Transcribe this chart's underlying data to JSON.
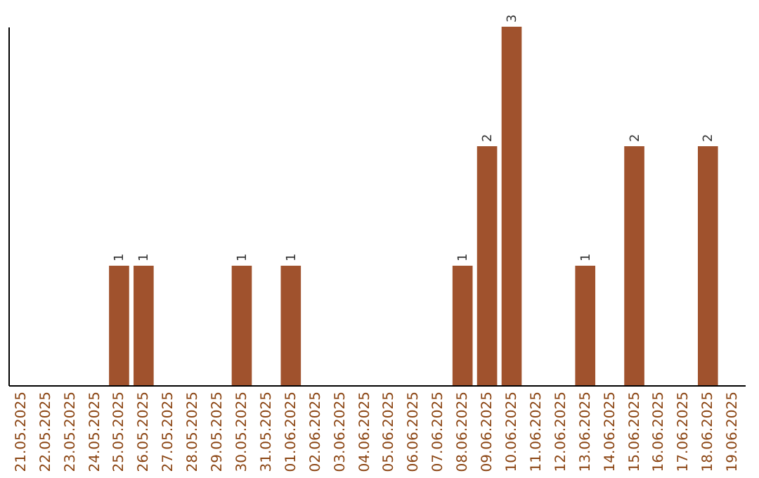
{
  "chart_data": {
    "type": "bar",
    "categories": [
      "21.05.2025",
      "22.05.2025",
      "23.05.2025",
      "24.05.2025",
      "25.05.2025",
      "26.05.2025",
      "27.05.2025",
      "28.05.2025",
      "29.05.2025",
      "30.05.2025",
      "31.05.2025",
      "01.06.2025",
      "02.06.2025",
      "03.06.2025",
      "04.06.2025",
      "05.06.2025",
      "06.06.2025",
      "07.06.2025",
      "08.06.2025",
      "09.06.2025",
      "10.06.2025",
      "11.06.2025",
      "12.06.2025",
      "13.06.2025",
      "14.06.2025",
      "15.06.2025",
      "16.06.2025",
      "17.06.2025",
      "18.06.2025",
      "19.06.2025"
    ],
    "values": [
      0,
      0,
      0,
      0,
      1,
      1,
      0,
      0,
      0,
      1,
      0,
      1,
      0,
      0,
      0,
      0,
      0,
      0,
      1,
      2,
      3,
      0,
      0,
      1,
      0,
      2,
      0,
      0,
      2,
      0
    ],
    "value_labels": [
      null,
      null,
      null,
      null,
      "1",
      "1",
      null,
      null,
      null,
      "1",
      null,
      "1",
      null,
      null,
      null,
      null,
      null,
      null,
      "1",
      "2",
      "3",
      null,
      null,
      "1",
      null,
      "2",
      null,
      null,
      "2",
      null
    ],
    "color": "#a0522d",
    "grid": false,
    "tick_labels": "x"
  }
}
